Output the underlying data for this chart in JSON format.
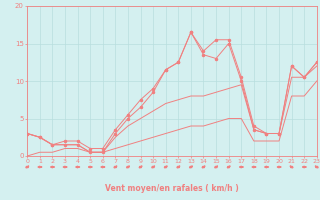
{
  "title": "",
  "xlabel": "Vent moyen/en rafales ( km/h )",
  "background_color": "#d4f0f0",
  "grid_color": "#b8dede",
  "line_color": "#f08080",
  "x_values": [
    0,
    1,
    2,
    3,
    4,
    5,
    6,
    7,
    8,
    9,
    10,
    11,
    12,
    13,
    14,
    15,
    16,
    17,
    18,
    19,
    20,
    21,
    22,
    23
  ],
  "y_speed": [
    3,
    2.5,
    1.5,
    1.5,
    1.5,
    0.5,
    0.5,
    3,
    5,
    6.5,
    8.5,
    11.5,
    12.5,
    16.5,
    13.5,
    13,
    15,
    10,
    3.5,
    3,
    3,
    12,
    10.5,
    12.5
  ],
  "y_gust": [
    3,
    2.5,
    1.5,
    2,
    2,
    1,
    1,
    3.5,
    5.5,
    7.5,
    9,
    11.5,
    12.5,
    16.5,
    14,
    15.5,
    15.5,
    10.5,
    4,
    3,
    3,
    12,
    10.5,
    12.5
  ],
  "y_mean1": [
    3,
    2.5,
    1.5,
    1.5,
    1.5,
    0.5,
    0.5,
    2.5,
    4,
    5,
    6,
    7,
    7.5,
    8,
    8,
    8.5,
    9,
    9.5,
    3.5,
    3,
    3,
    10.5,
    10.5,
    12
  ],
  "y_mean2": [
    0,
    0.5,
    0.5,
    1,
    1,
    0.5,
    0.5,
    1,
    1.5,
    2,
    2.5,
    3,
    3.5,
    4,
    4,
    4.5,
    5,
    5,
    2,
    2,
    2,
    8,
    8,
    10
  ],
  "ylim": [
    0,
    20
  ],
  "xlim": [
    0,
    23
  ],
  "yticks": [
    0,
    5,
    10,
    15,
    20
  ],
  "xticks": [
    0,
    1,
    2,
    3,
    4,
    5,
    6,
    7,
    8,
    9,
    10,
    11,
    12,
    13,
    14,
    15,
    16,
    17,
    18,
    19,
    20,
    21,
    22,
    23
  ],
  "axis_color": "#f08080",
  "tick_color": "#f08080",
  "arrow_angles": [
    225,
    270,
    270,
    270,
    270,
    270,
    270,
    225,
    225,
    225,
    225,
    225,
    225,
    225,
    225,
    225,
    225,
    270,
    270,
    270,
    270,
    135,
    270,
    135
  ]
}
